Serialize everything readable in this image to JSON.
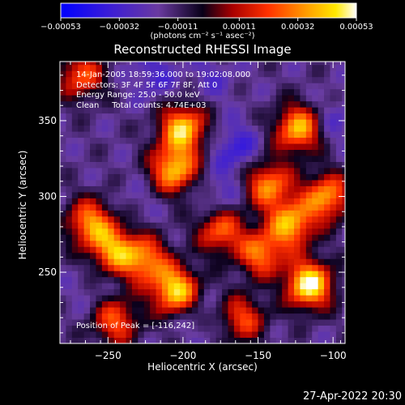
{
  "chart_data": {
    "type": "heatmap",
    "title": "Reconstructed RHESSI Image",
    "xlabel": "Heliocentric X (arcsec)",
    "ylabel": "Heliocentric Y (arcsec)",
    "xlim": [
      -282,
      -92
    ],
    "ylim": [
      203,
      389
    ],
    "xticks": [
      -250,
      -200,
      -150,
      -100
    ],
    "xtick_labels": [
      "−250",
      "−200",
      "−150",
      "−100"
    ],
    "yticks": [
      250,
      300,
      350
    ],
    "ytick_labels": [
      "250",
      "300",
      "350"
    ],
    "colorbar": {
      "colormap": "blue-purple-black-red-orange-yellow-white",
      "range": [
        -0.00053,
        0.00053
      ],
      "ticks": [
        -0.00053,
        -0.00032,
        -0.00011,
        0.00011,
        0.00032,
        0.00053
      ],
      "tick_labels": [
        "−0.00053",
        "−0.00032",
        "−0.00011",
        "0.00011",
        "0.00032",
        "0.00053"
      ],
      "units": "(photons cm⁻² s⁻¹ asec⁻²)"
    },
    "annotations": [
      "14-Jan-2005 18:59:36.000 to 19:02:08.000",
      "Detectors: 3F 4F 5F 6F 7F 8F, Att 0",
      "Energy Range: 25.0 - 50.0 keV",
      "Clean     Total counts: 4.74E+03"
    ],
    "peak_label": "Position of Peak = [-116,242]",
    "peak": [
      -116,
      242
    ],
    "bright_regions": [
      {
        "x": -200,
        "y": 345,
        "level": 0.8
      },
      {
        "x": -206,
        "y": 318,
        "level": 0.75
      },
      {
        "x": -262,
        "y": 283,
        "level": 0.6
      },
      {
        "x": -246,
        "y": 265,
        "level": 0.6
      },
      {
        "x": -225,
        "y": 258,
        "level": 0.55
      },
      {
        "x": -205,
        "y": 238,
        "level": 0.85
      },
      {
        "x": -175,
        "y": 278,
        "level": 0.5
      },
      {
        "x": -148,
        "y": 262,
        "level": 0.55
      },
      {
        "x": -143,
        "y": 308,
        "level": 0.6
      },
      {
        "x": -123,
        "y": 345,
        "level": 0.75
      },
      {
        "x": -128,
        "y": 282,
        "level": 0.7
      },
      {
        "x": -116,
        "y": 242,
        "level": 1.0
      },
      {
        "x": -104,
        "y": 300,
        "level": 0.65
      },
      {
        "x": -245,
        "y": 218,
        "level": 0.45
      },
      {
        "x": -160,
        "y": 220,
        "level": 0.4
      },
      {
        "x": -268,
        "y": 380,
        "level": 0.45
      }
    ],
    "dark_regions": [
      {
        "x": -220,
        "y": 380,
        "level": -0.6
      },
      {
        "x": -180,
        "y": 378,
        "level": -0.5
      },
      {
        "x": -165,
        "y": 332,
        "level": -0.7
      },
      {
        "x": -100,
        "y": 350,
        "level": -0.55
      },
      {
        "x": -230,
        "y": 298,
        "level": -0.4
      },
      {
        "x": -175,
        "y": 300,
        "level": -0.55
      },
      {
        "x": -190,
        "y": 222,
        "level": -0.45
      },
      {
        "x": -262,
        "y": 238,
        "level": -0.4
      },
      {
        "x": -145,
        "y": 240,
        "level": -0.35
      }
    ]
  },
  "footer": {
    "datestamp": "27-Apr-2022 20:30"
  }
}
